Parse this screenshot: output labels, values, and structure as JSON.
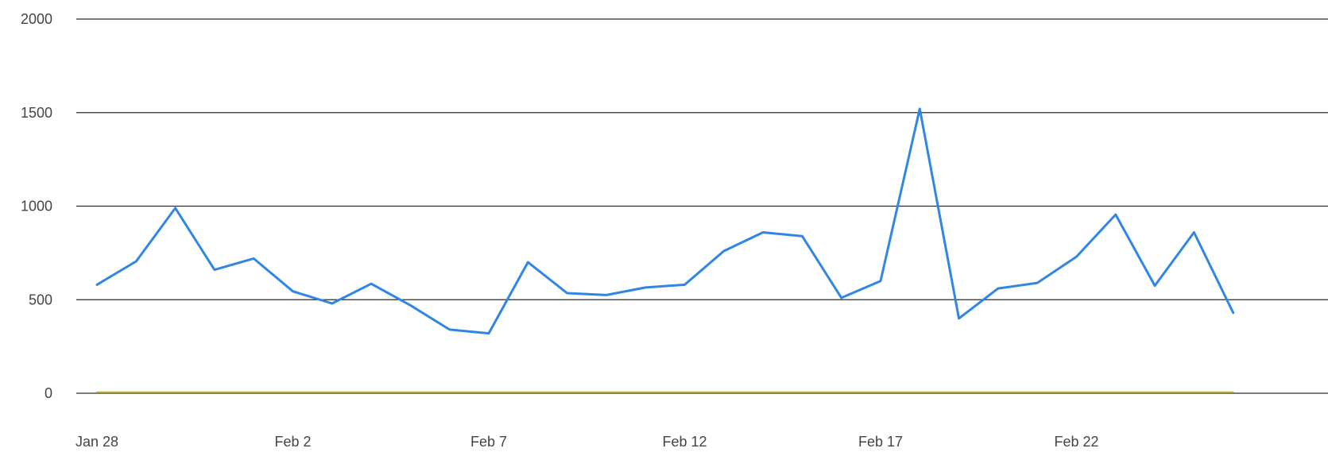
{
  "chart_data": {
    "type": "line",
    "title": "",
    "xlabel": "",
    "ylabel": "",
    "ylim": [
      0,
      2000
    ],
    "y_ticks": [
      "0",
      "500",
      "1000",
      "1500",
      "2000"
    ],
    "x_ticks": [
      "Jan 28",
      "Feb 2",
      "Feb 7",
      "Feb 12",
      "Feb 17",
      "Feb 22"
    ],
    "grid": true,
    "legend": "none",
    "x": [
      "Jan 28",
      "Jan 29",
      "Jan 30",
      "Jan 31",
      "Feb 1",
      "Feb 2",
      "Feb 3",
      "Feb 4",
      "Feb 5",
      "Feb 6",
      "Feb 7",
      "Feb 8",
      "Feb 9",
      "Feb 10",
      "Feb 11",
      "Feb 12",
      "Feb 13",
      "Feb 14",
      "Feb 15",
      "Feb 16",
      "Feb 17",
      "Feb 18",
      "Feb 19",
      "Feb 20",
      "Feb 21",
      "Feb 22",
      "Feb 23",
      "Feb 24",
      "Feb 25",
      "Feb 26"
    ],
    "series": [
      {
        "color": "#2f86e4",
        "values": [
          580,
          705,
          990,
          660,
          720,
          545,
          480,
          585,
          470,
          340,
          320,
          700,
          535,
          525,
          565,
          580,
          760,
          860,
          840,
          510,
          600,
          1520,
          400,
          560,
          590,
          730,
          955,
          575,
          860,
          430
        ]
      },
      {
        "color": "#c2b92c",
        "values": [
          5,
          5,
          5,
          5,
          5,
          5,
          5,
          5,
          5,
          5,
          5,
          5,
          5,
          5,
          5,
          5,
          5,
          5,
          5,
          5,
          5,
          5,
          5,
          5,
          5,
          5,
          5,
          5,
          5,
          5
        ]
      }
    ]
  },
  "colors": {
    "gridline": "#2a2a2a",
    "tick_text": "#444444"
  }
}
